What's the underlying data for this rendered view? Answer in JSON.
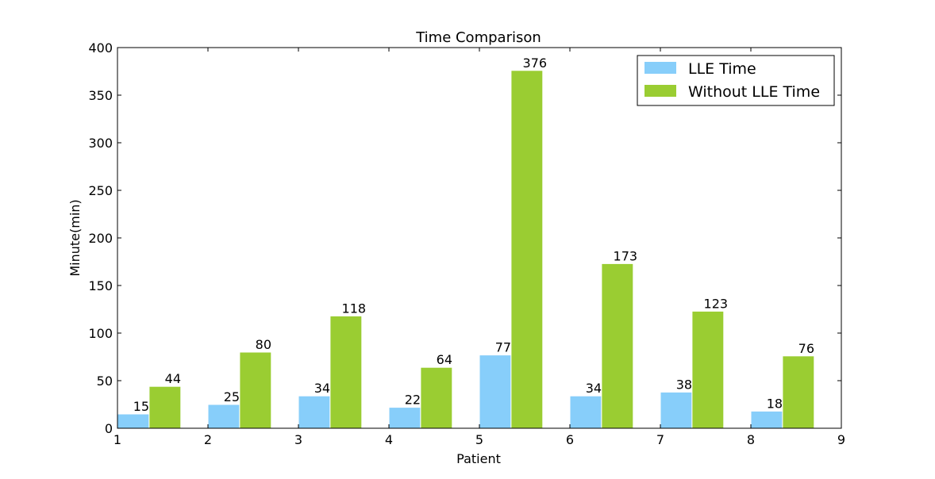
{
  "chart_data": {
    "type": "bar",
    "title": "Time Comparison",
    "xlabel": "Patient",
    "ylabel": "Minute(min)",
    "xlim": [
      1,
      9
    ],
    "ylim": [
      0,
      400
    ],
    "xticks": [
      "1",
      "2",
      "3",
      "4",
      "5",
      "6",
      "7",
      "8",
      "9"
    ],
    "yticks": [
      "0",
      "50",
      "100",
      "150",
      "200",
      "250",
      "300",
      "350",
      "400"
    ],
    "categories": [
      1,
      2,
      3,
      4,
      5,
      6,
      7,
      8
    ],
    "grid": false,
    "legend_position": "top-right",
    "series": [
      {
        "name": "LLE Time",
        "color": "#87CEFA",
        "values": [
          15,
          25,
          34,
          22,
          77,
          34,
          38,
          18
        ]
      },
      {
        "name": "Without LLE Time",
        "color": "#9ACD32",
        "values": [
          44,
          80,
          118,
          64,
          376,
          173,
          123,
          76
        ]
      }
    ]
  }
}
